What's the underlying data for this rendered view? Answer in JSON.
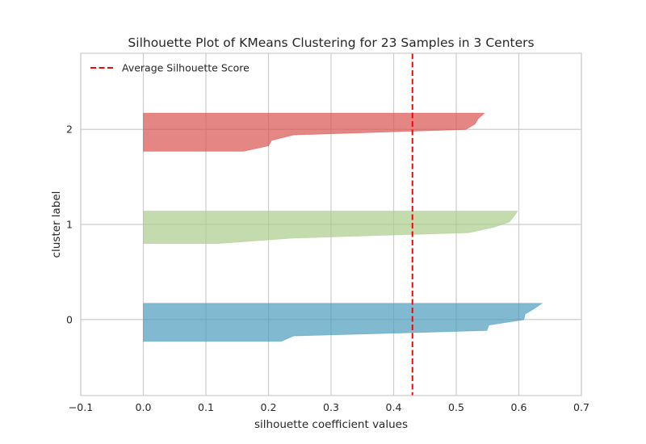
{
  "chart_data": {
    "type": "area",
    "title": "Silhouette Plot of KMeans Clustering for 23 Samples in 3 Centers",
    "xlabel": "silhouette coefficient values",
    "ylabel": "cluster label",
    "xlim": [
      -0.1,
      0.7
    ],
    "ylim": [
      -0.8,
      2.8
    ],
    "x_ticks": [
      "−0.1",
      "0.0",
      "0.1",
      "0.2",
      "0.3",
      "0.4",
      "0.5",
      "0.6",
      "0.7"
    ],
    "y_ticks": [
      "0",
      "1",
      "2"
    ],
    "grid": true,
    "legend_position": "top-left",
    "legend": [
      {
        "label": "Average Silhouette Score",
        "color": "#ff0000",
        "style": "dashed"
      }
    ],
    "average_silhouette_score": 0.43,
    "series": [
      {
        "cluster": 0,
        "color": "#4c9bbd",
        "samples": 8,
        "y_range": [
          -0.23,
          0.17
        ],
        "values": [
          0.637,
          0.624,
          0.61,
          0.608,
          0.552,
          0.549,
          0.24,
          0.22
        ]
      },
      {
        "cluster": 1,
        "color": "#a9cc8a",
        "samples": 7,
        "y_range": [
          0.8,
          1.14
        ],
        "values": [
          0.598,
          0.592,
          0.585,
          0.56,
          0.52,
          0.24,
          0.12
        ]
      },
      {
        "cluster": 2,
        "color": "#d9534f",
        "samples": 8,
        "y_range": [
          1.77,
          2.17
        ],
        "values": [
          0.545,
          0.535,
          0.53,
          0.515,
          0.24,
          0.205,
          0.2,
          0.16
        ]
      }
    ]
  }
}
